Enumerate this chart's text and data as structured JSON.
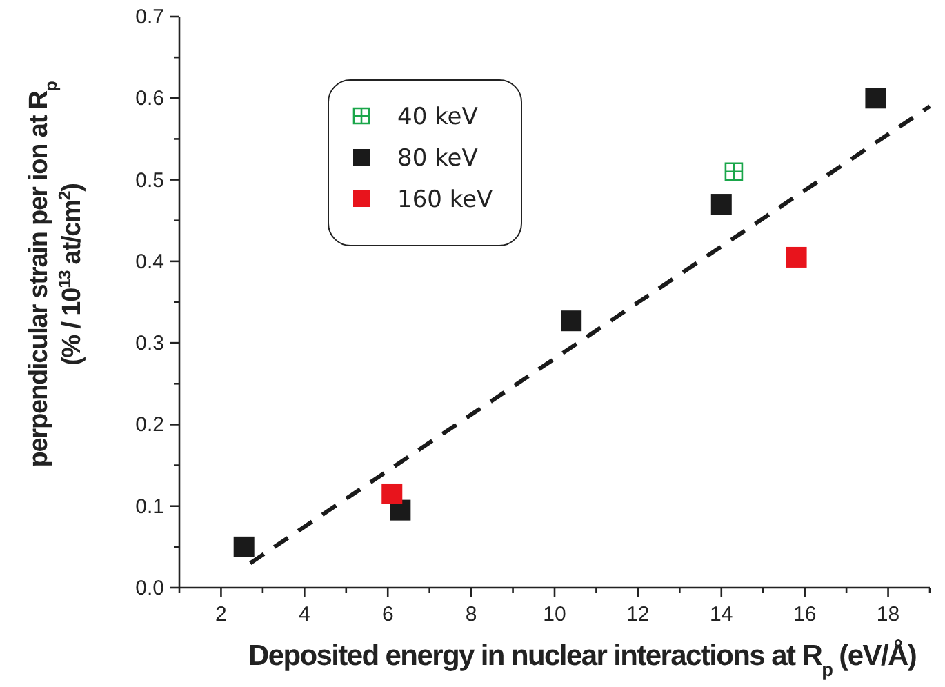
{
  "chart_data": {
    "type": "scatter",
    "xlabel": "Deposited energy in nuclear interactions at R$_{p}$ (eV/Å)",
    "ylabel": "perpendicular strain per ion at R$_{p}$\n(% / 10$^{13}$ at/cm$^{2}$)",
    "xlim": [
      1,
      19
    ],
    "ylim": [
      0,
      0.7
    ],
    "xticks": [
      {
        "value": 1,
        "label": null
      },
      2,
      {
        "value": 3,
        "label": null
      },
      4,
      {
        "value": 5,
        "label": null
      },
      6,
      {
        "value": 7,
        "label": null
      },
      8,
      {
        "value": 9,
        "label": null
      },
      10,
      {
        "value": 11,
        "label": null
      },
      12,
      {
        "value": 13,
        "label": null
      },
      14,
      {
        "value": 15,
        "label": null
      },
      16,
      {
        "value": 17,
        "label": null
      },
      18,
      {
        "value": 19,
        "label": null
      }
    ],
    "yticks": [
      {
        "value": 0,
        "label": "0.0"
      },
      {
        "value": 0.05,
        "label": null
      },
      0.1,
      {
        "value": 0.15,
        "label": null
      },
      0.2,
      {
        "value": 0.25,
        "label": null
      },
      0.3,
      {
        "value": 0.35,
        "label": null
      },
      0.4,
      {
        "value": 0.45,
        "label": null
      },
      0.5,
      {
        "value": 0.55,
        "label": null
      },
      0.6,
      {
        "value": 0.65,
        "label": null
      },
      0.7
    ],
    "grid": false,
    "legend": "top left",
    "series": [
      {
        "name": "40 keV",
        "color": "#1aa64a",
        "marker": "cross",
        "x": [
          14.3
        ],
        "values": [
          0.51
        ]
      },
      {
        "name": "80 keV",
        "color": "#1a1a1a",
        "marker": "square",
        "x": [
          2.55,
          6.3,
          10.4,
          14.0,
          17.7
        ],
        "values": [
          0.05,
          0.095,
          0.327,
          0.47,
          0.6
        ]
      },
      {
        "name": "160 keV",
        "color": "#e8141c",
        "marker": "square",
        "x": [
          6.1,
          15.8
        ],
        "values": [
          0.115,
          0.405
        ]
      },
      {
        "type": "line",
        "color": "#1a1a1a",
        "line_style": "dashed",
        "marker": "none",
        "x": [
          2.7,
          19
        ],
        "values": [
          0.03,
          0.59
        ]
      }
    ]
  }
}
